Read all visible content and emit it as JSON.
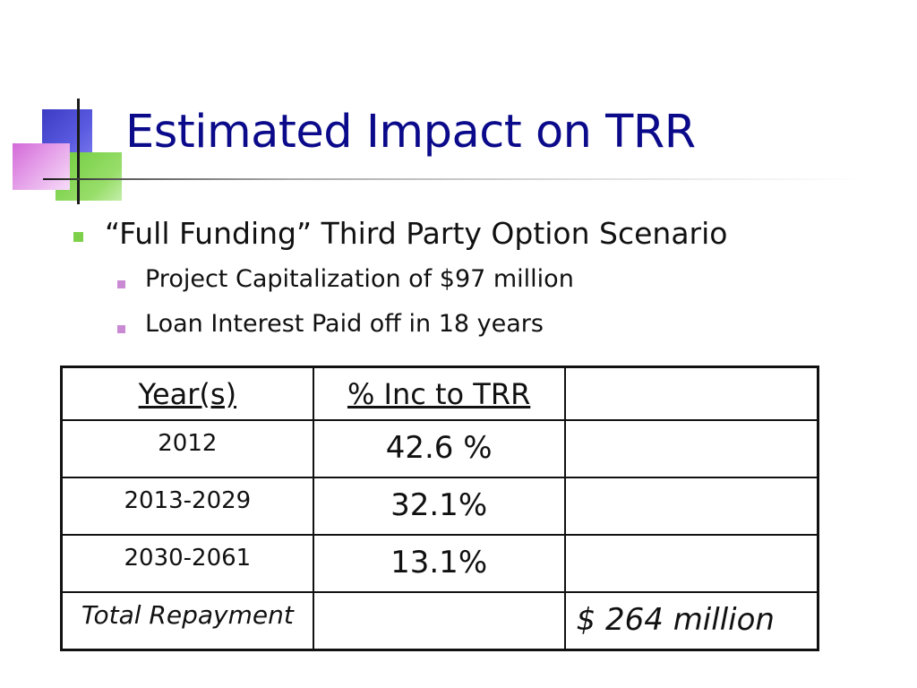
{
  "slide": {
    "title": "Estimated Impact on TRR",
    "bullet_main": "“Full Funding” Third Party Option Scenario",
    "sub_bullets": [
      "Project Capitalization of $97 million",
      "Loan Interest Paid off in 18 years"
    ]
  },
  "table": {
    "headers": [
      "Year(s)",
      "% Inc to TRR",
      ""
    ],
    "rows": [
      {
        "year": "2012",
        "pct": "42.6 %",
        "extra": ""
      },
      {
        "year": "2013-2029",
        "pct": "32.1%",
        "extra": ""
      },
      {
        "year": "2030-2061",
        "pct": "13.1%",
        "extra": ""
      }
    ],
    "total": {
      "label": "Total Repayment",
      "pct": "",
      "value": "$ 264 million"
    }
  }
}
